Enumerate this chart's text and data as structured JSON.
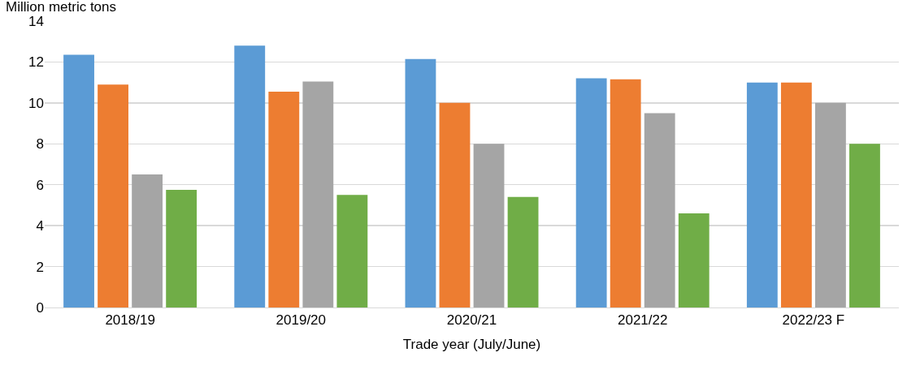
{
  "chart_data": {
    "type": "bar",
    "ylabel": "Million metric tons",
    "xlabel": "Trade year (July/June)",
    "categories": [
      "2018/19",
      "2019/20",
      "2020/21",
      "2021/22",
      "2022/23 F"
    ],
    "series": [
      {
        "color": "#5b9bd5",
        "values": [
          12.35,
          12.8,
          12.15,
          11.2,
          11
        ]
      },
      {
        "color": "#ed7d31",
        "values": [
          10.9,
          10.55,
          10,
          11.15,
          11
        ]
      },
      {
        "color": "#a5a5a5",
        "values": [
          6.5,
          11.05,
          8,
          9.5,
          10
        ]
      },
      {
        "color": "#70ad47",
        "values": [
          5.75,
          5.5,
          5.4,
          4.6,
          8
        ]
      }
    ],
    "ylim": [
      0,
      14
    ],
    "yticks": [
      0,
      2,
      4,
      6,
      8,
      10,
      12,
      14
    ],
    "grid": "y"
  }
}
